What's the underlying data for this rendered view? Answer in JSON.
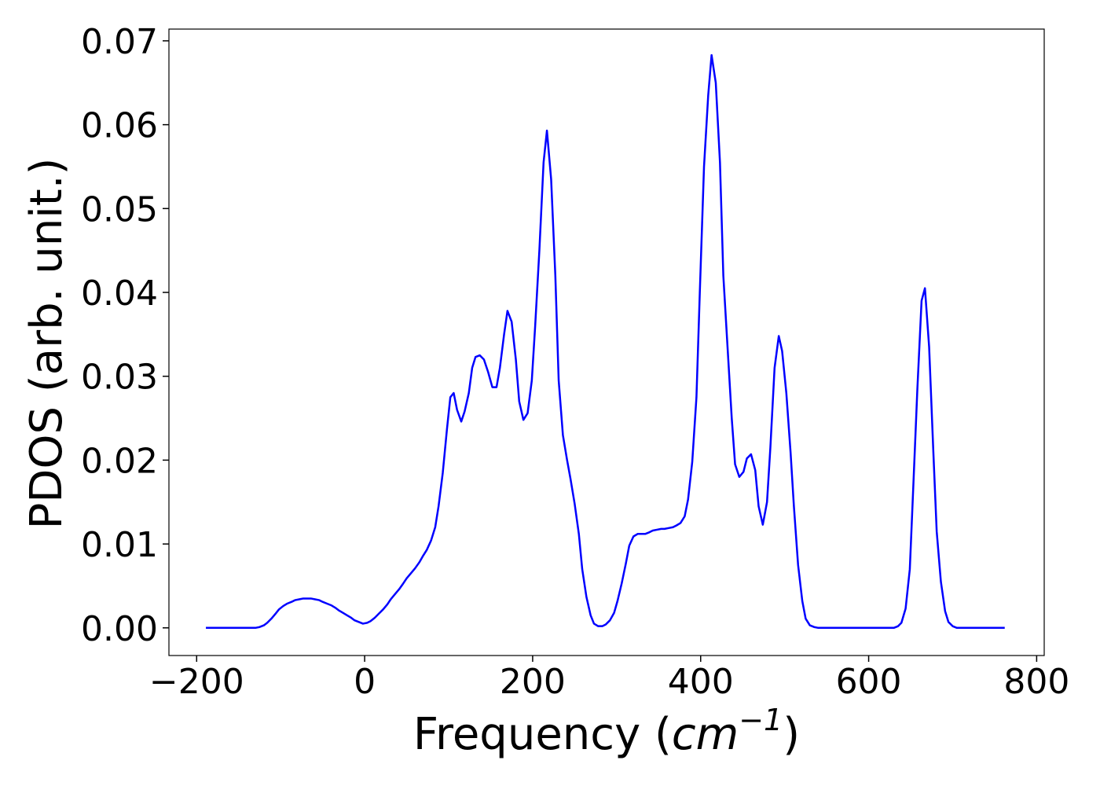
{
  "chart_data": {
    "type": "line",
    "xlabel": [
      "Frequency (",
      "cm",
      "−1",
      ")"
    ],
    "ylabel": "PDOS (arb. unit.)",
    "color": "#0000ff",
    "xlim": [
      -233,
      809
    ],
    "ylim": [
      -0.0033,
      0.0714
    ],
    "xticks": [
      {
        "value": -200,
        "label": "−200"
      },
      0,
      200,
      400,
      600,
      800
    ],
    "yticks": [
      {
        "value": 0,
        "label": "0.00"
      },
      {
        "value": 0.01,
        "label": "0.01"
      },
      {
        "value": 0.02,
        "label": "0.02"
      },
      {
        "value": 0.03,
        "label": "0.03"
      },
      {
        "value": 0.04,
        "label": "0.04"
      },
      {
        "value": 0.05,
        "label": "0.05"
      },
      {
        "value": 0.06,
        "label": "0.06"
      },
      {
        "value": 0.07,
        "label": "0.07"
      }
    ],
    "x": [
      -189,
      -130,
      -125,
      -120,
      -116,
      -111,
      -106,
      -102,
      -97,
      -92,
      -87,
      -83,
      -78,
      -73,
      -68,
      -64,
      -59,
      -54,
      -50,
      -45,
      -40,
      -35,
      -31,
      -26,
      -21,
      -16,
      -12,
      -7,
      -2,
      3,
      7,
      12,
      17,
      22,
      27,
      31,
      36,
      41,
      46,
      50,
      55,
      60,
      65,
      69,
      74,
      79,
      84,
      88,
      93,
      98,
      102,
      106,
      110,
      115,
      119,
      124,
      128,
      132,
      137,
      142,
      147,
      152,
      157,
      161,
      166,
      170,
      175,
      180,
      184,
      189,
      194,
      199,
      203,
      208,
      213,
      217,
      222,
      227,
      231,
      236,
      241,
      245,
      250,
      255,
      259,
      264,
      269,
      273,
      278,
      283,
      287,
      292,
      297,
      301,
      306,
      311,
      315,
      320,
      325,
      329,
      334,
      339,
      343,
      348,
      353,
      357,
      362,
      367,
      371,
      376,
      381,
      385,
      390,
      395,
      399,
      404,
      409,
      413,
      418,
      423,
      427,
      432,
      437,
      441,
      446,
      451,
      455,
      460,
      465,
      469,
      474,
      479,
      483,
      488,
      493,
      497,
      502,
      507,
      511,
      516,
      521,
      525,
      530,
      535,
      540,
      600,
      630,
      635,
      639,
      644,
      649,
      653,
      658,
      663,
      667,
      672,
      677,
      681,
      686,
      691,
      695,
      700,
      705,
      762
    ],
    "values": [
      0,
      0,
      0.0001,
      0.0003,
      0.0006,
      0.0011,
      0.0017,
      0.0022,
      0.0026,
      0.0029,
      0.0031,
      0.0033,
      0.0034,
      0.0035,
      0.0035,
      0.0035,
      0.0034,
      0.0033,
      0.0031,
      0.0029,
      0.0027,
      0.0024,
      0.0021,
      0.0018,
      0.0015,
      0.0012,
      0.0009,
      0.0007,
      0.0005,
      0.0006,
      0.0008,
      0.0012,
      0.0017,
      0.0022,
      0.0028,
      0.0034,
      0.004,
      0.0046,
      0.0053,
      0.0059,
      0.0065,
      0.0071,
      0.0078,
      0.0085,
      0.0093,
      0.0104,
      0.012,
      0.0145,
      0.0185,
      0.0237,
      0.0275,
      0.028,
      0.026,
      0.0246,
      0.0258,
      0.028,
      0.031,
      0.0323,
      0.0325,
      0.032,
      0.0305,
      0.0287,
      0.0287,
      0.031,
      0.035,
      0.0378,
      0.0365,
      0.032,
      0.027,
      0.0248,
      0.0256,
      0.0295,
      0.036,
      0.045,
      0.0555,
      0.0593,
      0.0535,
      0.042,
      0.0295,
      0.023,
      0.02,
      0.0178,
      0.0148,
      0.0112,
      0.007,
      0.0037,
      0.0015,
      0.0005,
      0.0002,
      0.0002,
      0.0004,
      0.0009,
      0.0018,
      0.0032,
      0.0053,
      0.0077,
      0.0098,
      0.0109,
      0.0112,
      0.0112,
      0.0112,
      0.0114,
      0.0116,
      0.0117,
      0.0118,
      0.0118,
      0.0119,
      0.012,
      0.0122,
      0.0125,
      0.0133,
      0.0153,
      0.0198,
      0.0275,
      0.04,
      0.055,
      0.0635,
      0.0683,
      0.065,
      0.0555,
      0.042,
      0.0335,
      0.025,
      0.0195,
      0.018,
      0.0186,
      0.0202,
      0.0207,
      0.0188,
      0.0145,
      0.0123,
      0.015,
      0.0215,
      0.031,
      0.0348,
      0.033,
      0.028,
      0.021,
      0.0145,
      0.0075,
      0.0032,
      0.0011,
      0.0003,
      0.0001,
      0,
      0,
      0,
      0.0002,
      0.0006,
      0.0023,
      0.007,
      0.0165,
      0.0285,
      0.039,
      0.0405,
      0.0335,
      0.021,
      0.0115,
      0.0055,
      0.002,
      0.0007,
      0.0002,
      0,
      0
    ]
  }
}
